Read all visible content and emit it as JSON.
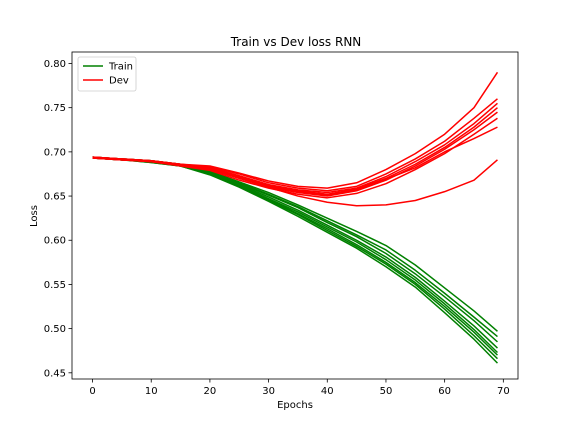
{
  "chart_data": {
    "type": "line",
    "title": "Train vs Dev loss RNN",
    "xlabel": "Epochs",
    "ylabel": "Loss",
    "xlim": [
      -3.5,
      72.5
    ],
    "ylim": [
      0.443,
      0.813
    ],
    "x_ticks": [
      0,
      10,
      20,
      30,
      40,
      50,
      60,
      70
    ],
    "y_ticks": [
      0.45,
      0.5,
      0.55,
      0.6,
      0.65,
      0.7,
      0.75,
      0.8
    ],
    "x_tick_labels": [
      "0",
      "10",
      "20",
      "30",
      "40",
      "50",
      "60",
      "70"
    ],
    "y_tick_labels": [
      "0.45",
      "0.50",
      "0.55",
      "0.60",
      "0.65",
      "0.70",
      "0.75",
      "0.80"
    ],
    "grid": false,
    "legend": {
      "position": "upper-left",
      "entries": [
        {
          "label": "Train",
          "color": "#008000"
        },
        {
          "label": "Dev",
          "color": "#ff0000"
        }
      ]
    },
    "x": [
      0,
      5,
      10,
      15,
      20,
      25,
      30,
      35,
      40,
      45,
      50,
      55,
      60,
      65,
      69
    ],
    "series": [
      {
        "group": "Train",
        "color": "#008000",
        "values": [
          0.694,
          0.691,
          0.689,
          0.685,
          0.677,
          0.663,
          0.649,
          0.634,
          0.617,
          0.6,
          0.581,
          0.558,
          0.531,
          0.503,
          0.478
        ]
      },
      {
        "group": "Train",
        "color": "#008000",
        "values": [
          0.693,
          0.691,
          0.689,
          0.684,
          0.675,
          0.661,
          0.645,
          0.629,
          0.611,
          0.593,
          0.573,
          0.55,
          0.522,
          0.492,
          0.466
        ]
      },
      {
        "group": "Train",
        "color": "#008000",
        "values": [
          0.694,
          0.692,
          0.69,
          0.686,
          0.679,
          0.665,
          0.652,
          0.638,
          0.622,
          0.606,
          0.589,
          0.566,
          0.54,
          0.513,
          0.491
        ]
      },
      {
        "group": "Train",
        "color": "#008000",
        "values": [
          0.693,
          0.691,
          0.688,
          0.684,
          0.674,
          0.66,
          0.644,
          0.627,
          0.609,
          0.591,
          0.57,
          0.547,
          0.518,
          0.488,
          0.461
        ]
      },
      {
        "group": "Train",
        "color": "#008000",
        "values": [
          0.694,
          0.692,
          0.69,
          0.685,
          0.677,
          0.664,
          0.651,
          0.637,
          0.62,
          0.604,
          0.585,
          0.562,
          0.536,
          0.509,
          0.485
        ]
      },
      {
        "group": "Train",
        "color": "#008000",
        "values": [
          0.693,
          0.691,
          0.689,
          0.685,
          0.676,
          0.662,
          0.647,
          0.632,
          0.615,
          0.598,
          0.578,
          0.555,
          0.528,
          0.499,
          0.473
        ]
      },
      {
        "group": "Train",
        "color": "#008000",
        "values": [
          0.694,
          0.692,
          0.69,
          0.686,
          0.678,
          0.666,
          0.654,
          0.64,
          0.625,
          0.61,
          0.594,
          0.572,
          0.546,
          0.52,
          0.497
        ]
      },
      {
        "group": "Train",
        "color": "#008000",
        "values": [
          0.693,
          0.691,
          0.688,
          0.684,
          0.675,
          0.661,
          0.646,
          0.63,
          0.613,
          0.595,
          0.575,
          0.552,
          0.525,
          0.496,
          0.47
        ]
      },
      {
        "group": "Dev",
        "color": "#ff0000",
        "values": [
          0.693,
          0.691,
          0.689,
          0.685,
          0.681,
          0.672,
          0.662,
          0.656,
          0.652,
          0.658,
          0.67,
          0.686,
          0.705,
          0.728,
          0.75
        ]
      },
      {
        "group": "Dev",
        "color": "#ff0000",
        "values": [
          0.694,
          0.692,
          0.69,
          0.686,
          0.683,
          0.675,
          0.665,
          0.659,
          0.656,
          0.661,
          0.675,
          0.692,
          0.712,
          0.738,
          0.76
        ]
      },
      {
        "group": "Dev",
        "color": "#ff0000",
        "values": [
          0.693,
          0.691,
          0.689,
          0.684,
          0.679,
          0.668,
          0.659,
          0.652,
          0.648,
          0.653,
          0.664,
          0.68,
          0.698,
          0.72,
          0.738
        ]
      },
      {
        "group": "Dev",
        "color": "#ff0000",
        "values": [
          0.694,
          0.692,
          0.69,
          0.686,
          0.684,
          0.676,
          0.667,
          0.661,
          0.659,
          0.665,
          0.68,
          0.698,
          0.72,
          0.75,
          0.79
        ]
      },
      {
        "group": "Dev",
        "color": "#ff0000",
        "values": [
          0.693,
          0.691,
          0.689,
          0.685,
          0.68,
          0.67,
          0.66,
          0.654,
          0.65,
          0.656,
          0.668,
          0.684,
          0.703,
          0.725,
          0.745
        ]
      },
      {
        "group": "Dev",
        "color": "#ff0000",
        "values": [
          0.694,
          0.692,
          0.69,
          0.685,
          0.682,
          0.673,
          0.663,
          0.657,
          0.654,
          0.659,
          0.672,
          0.689,
          0.708,
          0.732,
          0.755
        ]
      },
      {
        "group": "Dev",
        "color": "#ff0000",
        "values": [
          0.693,
          0.691,
          0.689,
          0.685,
          0.681,
          0.671,
          0.661,
          0.655,
          0.651,
          0.657,
          0.669,
          0.682,
          0.7,
          0.715,
          0.728
        ]
      },
      {
        "group": "Dev",
        "color": "#ff0000",
        "values": [
          0.694,
          0.692,
          0.69,
          0.686,
          0.682,
          0.672,
          0.66,
          0.65,
          0.643,
          0.639,
          0.64,
          0.645,
          0.655,
          0.668,
          0.691
        ]
      }
    ]
  }
}
